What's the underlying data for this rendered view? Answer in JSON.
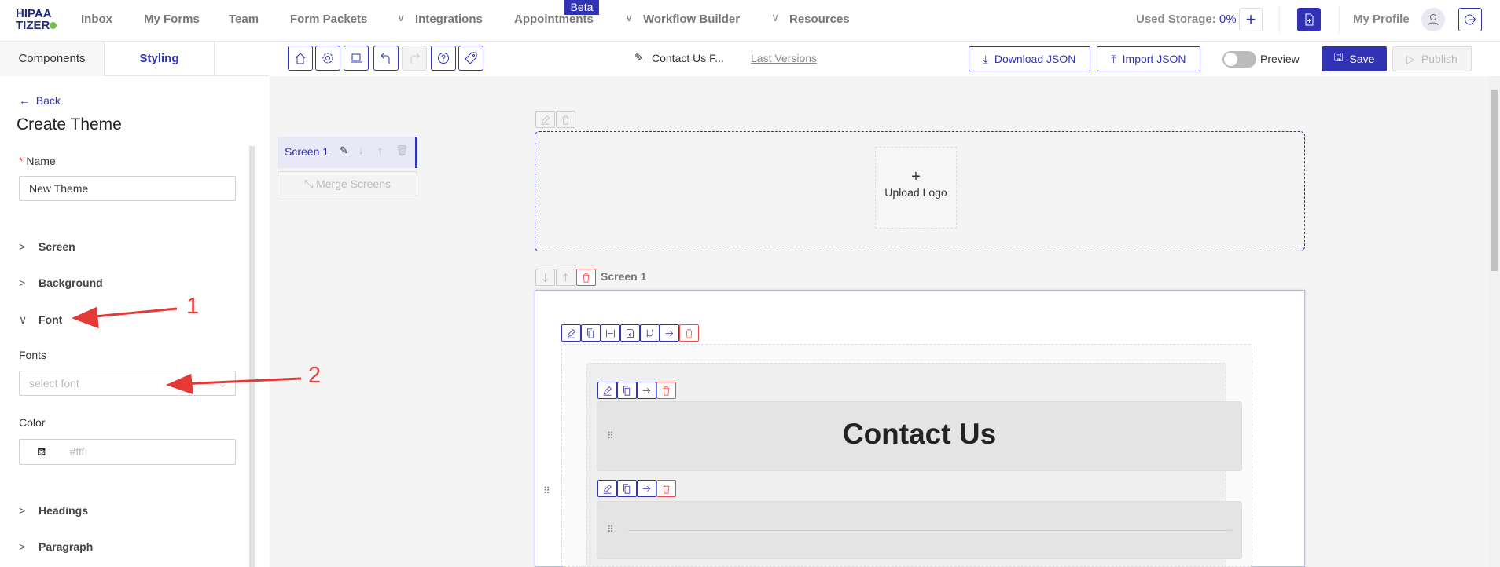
{
  "nav": {
    "logo": "HIPAA TIZER",
    "items": [
      {
        "label": "Inbox"
      },
      {
        "label": "My Forms"
      },
      {
        "label": "Team"
      },
      {
        "label": "Form Packets"
      },
      {
        "label": "Integrations"
      },
      {
        "label": "Appointments"
      },
      {
        "label": "Workflow Builder"
      },
      {
        "label": "Resources"
      }
    ],
    "beta": "Beta",
    "storage_label": "Used Storage:",
    "storage_value": "0%",
    "profile": "My Profile"
  },
  "tabs": [
    {
      "label": "Components"
    },
    {
      "label": "Styling",
      "active": true
    }
  ],
  "toolbar": {
    "doc_title": "Contact Us F...",
    "last_versions": "Last Versions",
    "download": "Download JSON",
    "import": "Import JSON",
    "preview": "Preview",
    "preview_on": false,
    "save": "Save",
    "publish": "Publish"
  },
  "sidebar": {
    "back": "Back",
    "title": "Create Theme",
    "name_label": "Name",
    "name_value": "New Theme",
    "sections": [
      "Screen",
      "Background",
      "Font",
      "Headings",
      "Paragraph"
    ],
    "fonts_label": "Fonts",
    "fonts_placeholder": "select font",
    "color_label": "Color",
    "color_placeholder": "#fff"
  },
  "screens": {
    "item": "Screen 1",
    "merge": "Merge Screens"
  },
  "canvas": {
    "upload_plus": "+",
    "upload_logo": "Upload Logo",
    "screen_label": "Screen 1",
    "heading": "Contact Us"
  },
  "annotations": {
    "one": "1",
    "two": "2"
  },
  "colors": {
    "accent": "#3133b4",
    "danger": "#f04b4b",
    "annotation": "#e53935"
  }
}
